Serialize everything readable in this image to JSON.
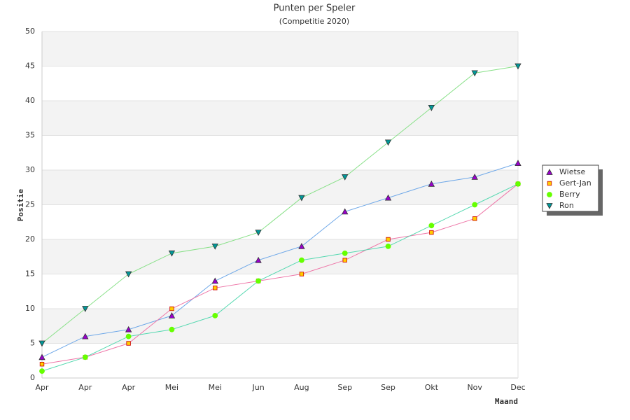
{
  "chart_data": {
    "type": "line",
    "title": "Punten per Speler",
    "subtitle": "(Competitie 2020)",
    "x_label": "Maand",
    "y_label": "Positie",
    "categories": [
      "Apr",
      "Apr",
      "Apr",
      "Mei",
      "Mei",
      "Jun",
      "Aug",
      "Sep",
      "Sep",
      "Okt",
      "Nov",
      "Dec"
    ],
    "series": [
      {
        "name": "Wietse",
        "color": "#9900cc",
        "line_color": "#6fa8e8",
        "marker": "triangle",
        "values": [
          3,
          6,
          7,
          9,
          14,
          17,
          19,
          24,
          26,
          28,
          29,
          31
        ]
      },
      {
        "name": "Gert-Jan",
        "color": "#ffcc00",
        "line_color": "#ee77a8",
        "marker": "square",
        "values": [
          2,
          3,
          5,
          10,
          13,
          14,
          15,
          17,
          20,
          21,
          23,
          28
        ]
      },
      {
        "name": "Berry",
        "color": "#66ff00",
        "line_color": "#55d8b0",
        "marker": "circle",
        "values": [
          1,
          3,
          6,
          7,
          9,
          14,
          17,
          18,
          19,
          22,
          25,
          28
        ]
      },
      {
        "name": "Ron",
        "color": "#009999",
        "line_color": "#88e088",
        "marker": "triangle-down",
        "values": [
          5,
          10,
          15,
          18,
          19,
          21,
          26,
          29,
          34,
          39,
          44,
          45
        ]
      }
    ],
    "ylim": [
      0,
      50
    ],
    "yticks": [
      0,
      5,
      10,
      15,
      20,
      25,
      30,
      35,
      40,
      45,
      50
    ],
    "grid": true,
    "alternating_bands": true,
    "legend": "right"
  }
}
